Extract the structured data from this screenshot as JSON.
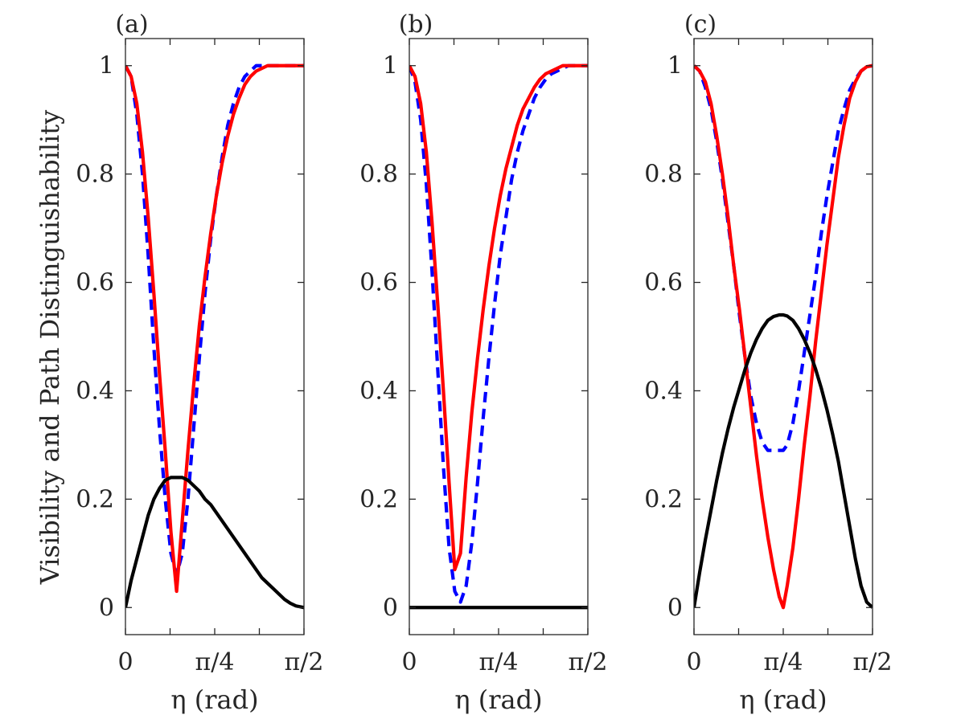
{
  "chart_data": {
    "ylabel": "Visibility and Path Distinguishability",
    "ylim": [
      -0.05,
      1.05
    ],
    "xlim": [
      0,
      1.5708
    ],
    "yticks": [
      {
        "value": 0,
        "label": "0"
      },
      {
        "value": 0.2,
        "label": "0.2"
      },
      {
        "value": 0.4,
        "label": "0.4"
      },
      {
        "value": 0.6,
        "label": "0.6"
      },
      {
        "value": 0.8,
        "label": "0.8"
      },
      {
        "value": 1,
        "label": "1"
      }
    ],
    "xticks": [
      {
        "value": 0,
        "label": "0"
      },
      {
        "value": 0.3927,
        "label": ""
      },
      {
        "value": 0.7854,
        "label": "π/4"
      },
      {
        "value": 1.1781,
        "label": ""
      },
      {
        "value": 1.5708,
        "label": "π/2"
      }
    ],
    "panels": [
      {
        "label": "(a)",
        "type": "line",
        "xlabel": "η (rad)",
        "series": [
          {
            "name": "dashed",
            "color": "#0000ff",
            "style": "dashed",
            "x": [
              0,
              0.05,
              0.1,
              0.15,
              0.2,
              0.25,
              0.3,
              0.35,
              0.4,
              0.45,
              0.5,
              0.55,
              0.6,
              0.65,
              0.7,
              0.75,
              0.8,
              0.85,
              0.9,
              0.95,
              1.0,
              1.05,
              1.1,
              1.15,
              1.2,
              1.25,
              1.3,
              1.35,
              1.4,
              1.45,
              1.5,
              1.5708
            ],
            "y": [
              1,
              0.98,
              0.91,
              0.8,
              0.65,
              0.48,
              0.33,
              0.2,
              0.1,
              0.06,
              0.1,
              0.2,
              0.33,
              0.46,
              0.58,
              0.68,
              0.76,
              0.83,
              0.89,
              0.93,
              0.96,
              0.98,
              0.99,
              1.0,
              1.0,
              1.0,
              1.0,
              1.0,
              1.0,
              1.0,
              1.0,
              1
            ]
          },
          {
            "name": "solid",
            "color": "#ff0000",
            "style": "solid",
            "x": [
              0,
              0.05,
              0.1,
              0.15,
              0.2,
              0.25,
              0.3,
              0.35,
              0.4,
              0.45,
              0.5,
              0.55,
              0.6,
              0.65,
              0.7,
              0.75,
              0.8,
              0.85,
              0.9,
              0.95,
              1.0,
              1.05,
              1.1,
              1.15,
              1.2,
              1.25,
              1.3,
              1.35,
              1.4,
              1.45,
              1.5,
              1.5708
            ],
            "y": [
              1,
              0.98,
              0.93,
              0.84,
              0.72,
              0.58,
              0.43,
              0.29,
              0.14,
              0.03,
              0.16,
              0.29,
              0.41,
              0.52,
              0.61,
              0.69,
              0.76,
              0.82,
              0.87,
              0.91,
              0.94,
              0.965,
              0.98,
              0.99,
              0.995,
              1.0,
              1.0,
              1.0,
              1.0,
              1.0,
              1.0,
              1
            ]
          },
          {
            "name": "black",
            "color": "#000000",
            "style": "solid",
            "x": [
              0,
              0.05,
              0.1,
              0.15,
              0.2,
              0.25,
              0.3,
              0.35,
              0.4,
              0.45,
              0.5,
              0.55,
              0.6,
              0.65,
              0.7,
              0.75,
              0.8,
              0.85,
              0.9,
              0.95,
              1.0,
              1.05,
              1.1,
              1.15,
              1.2,
              1.25,
              1.3,
              1.35,
              1.4,
              1.45,
              1.5,
              1.5708
            ],
            "y": [
              0,
              0.05,
              0.09,
              0.13,
              0.17,
              0.2,
              0.22,
              0.235,
              0.24,
              0.24,
              0.24,
              0.235,
              0.225,
              0.215,
              0.2,
              0.19,
              0.175,
              0.16,
              0.145,
              0.13,
              0.115,
              0.1,
              0.085,
              0.07,
              0.055,
              0.045,
              0.035,
              0.025,
              0.015,
              0.008,
              0.003,
              0
            ]
          }
        ]
      },
      {
        "label": "(b)",
        "type": "line",
        "xlabel": "η (rad)",
        "series": [
          {
            "name": "dashed",
            "color": "#0000ff",
            "style": "dashed",
            "x": [
              0,
              0.05,
              0.1,
              0.15,
              0.2,
              0.25,
              0.3,
              0.35,
              0.4,
              0.45,
              0.5,
              0.55,
              0.6,
              0.65,
              0.7,
              0.75,
              0.8,
              0.85,
              0.9,
              0.95,
              1.0,
              1.05,
              1.1,
              1.15,
              1.2,
              1.25,
              1.3,
              1.35,
              1.4,
              1.45,
              1.5,
              1.5708
            ],
            "y": [
              1,
              0.97,
              0.9,
              0.78,
              0.62,
              0.44,
              0.26,
              0.11,
              0.03,
              0.01,
              0.04,
              0.12,
              0.23,
              0.35,
              0.46,
              0.56,
              0.65,
              0.72,
              0.79,
              0.84,
              0.88,
              0.91,
              0.94,
              0.96,
              0.975,
              0.985,
              0.99,
              0.995,
              1.0,
              1.0,
              1.0,
              1
            ]
          },
          {
            "name": "solid",
            "color": "#ff0000",
            "style": "solid",
            "x": [
              0,
              0.05,
              0.1,
              0.15,
              0.2,
              0.25,
              0.3,
              0.35,
              0.4,
              0.45,
              0.5,
              0.55,
              0.6,
              0.65,
              0.7,
              0.75,
              0.8,
              0.85,
              0.9,
              0.95,
              1.0,
              1.05,
              1.1,
              1.15,
              1.2,
              1.25,
              1.3,
              1.35,
              1.4,
              1.45,
              1.5,
              1.5708
            ],
            "y": [
              1,
              0.98,
              0.93,
              0.84,
              0.71,
              0.56,
              0.4,
              0.23,
              0.07,
              0.1,
              0.24,
              0.36,
              0.46,
              0.55,
              0.63,
              0.7,
              0.76,
              0.81,
              0.85,
              0.89,
              0.92,
              0.94,
              0.96,
              0.975,
              0.985,
              0.99,
              0.995,
              1.0,
              1.0,
              1.0,
              1.0,
              1
            ]
          },
          {
            "name": "black",
            "color": "#000000",
            "style": "solid",
            "x": [
              0,
              1.5708
            ],
            "y": [
              0,
              0
            ]
          }
        ]
      },
      {
        "label": "(c)",
        "type": "line",
        "xlabel": "η (rad)",
        "series": [
          {
            "name": "dashed",
            "color": "#0000ff",
            "style": "dashed",
            "x": [
              0,
              0.05,
              0.1,
              0.15,
              0.2,
              0.25,
              0.3,
              0.35,
              0.4,
              0.45,
              0.5,
              0.55,
              0.6,
              0.65,
              0.7,
              0.75,
              0.7854,
              0.82,
              0.87,
              0.92,
              0.97,
              1.02,
              1.07,
              1.12,
              1.17,
              1.22,
              1.27,
              1.32,
              1.37,
              1.42,
              1.47,
              1.52,
              1.5708
            ],
            "y": [
              1,
              0.99,
              0.96,
              0.92,
              0.86,
              0.79,
              0.71,
              0.63,
              0.54,
              0.46,
              0.39,
              0.34,
              0.305,
              0.29,
              0.29,
              0.29,
              0.29,
              0.3,
              0.34,
              0.4,
              0.47,
              0.54,
              0.61,
              0.69,
              0.76,
              0.82,
              0.88,
              0.92,
              0.955,
              0.975,
              0.99,
              0.998,
              1
            ]
          },
          {
            "name": "solid",
            "color": "#ff0000",
            "style": "solid",
            "x": [
              0,
              0.05,
              0.1,
              0.15,
              0.2,
              0.25,
              0.3,
              0.35,
              0.4,
              0.45,
              0.5,
              0.55,
              0.6,
              0.65,
              0.7,
              0.75,
              0.7854,
              0.82,
              0.87,
              0.92,
              0.97,
              1.02,
              1.07,
              1.12,
              1.17,
              1.22,
              1.27,
              1.32,
              1.37,
              1.42,
              1.47,
              1.52,
              1.5708
            ],
            "y": [
              1,
              0.99,
              0.97,
              0.93,
              0.87,
              0.8,
              0.72,
              0.63,
              0.55,
              0.46,
              0.37,
              0.28,
              0.2,
              0.13,
              0.07,
              0.02,
              0,
              0.04,
              0.11,
              0.2,
              0.3,
              0.39,
              0.49,
              0.58,
              0.67,
              0.75,
              0.83,
              0.89,
              0.94,
              0.97,
              0.99,
              0.998,
              1
            ]
          },
          {
            "name": "black",
            "color": "#000000",
            "style": "solid",
            "x": [
              0,
              0.05,
              0.1,
              0.15,
              0.2,
              0.25,
              0.3,
              0.35,
              0.4,
              0.45,
              0.5,
              0.55,
              0.6,
              0.65,
              0.7,
              0.75,
              0.7854,
              0.82,
              0.87,
              0.92,
              0.97,
              1.02,
              1.07,
              1.12,
              1.17,
              1.22,
              1.27,
              1.32,
              1.37,
              1.42,
              1.47,
              1.52,
              1.5708
            ],
            "y": [
              0,
              0.065,
              0.125,
              0.18,
              0.235,
              0.285,
              0.33,
              0.37,
              0.405,
              0.44,
              0.47,
              0.495,
              0.515,
              0.53,
              0.537,
              0.54,
              0.54,
              0.538,
              0.53,
              0.515,
              0.495,
              0.47,
              0.44,
              0.405,
              0.365,
              0.32,
              0.27,
              0.21,
              0.15,
              0.09,
              0.04,
              0.01,
              0
            ]
          }
        ]
      }
    ]
  }
}
